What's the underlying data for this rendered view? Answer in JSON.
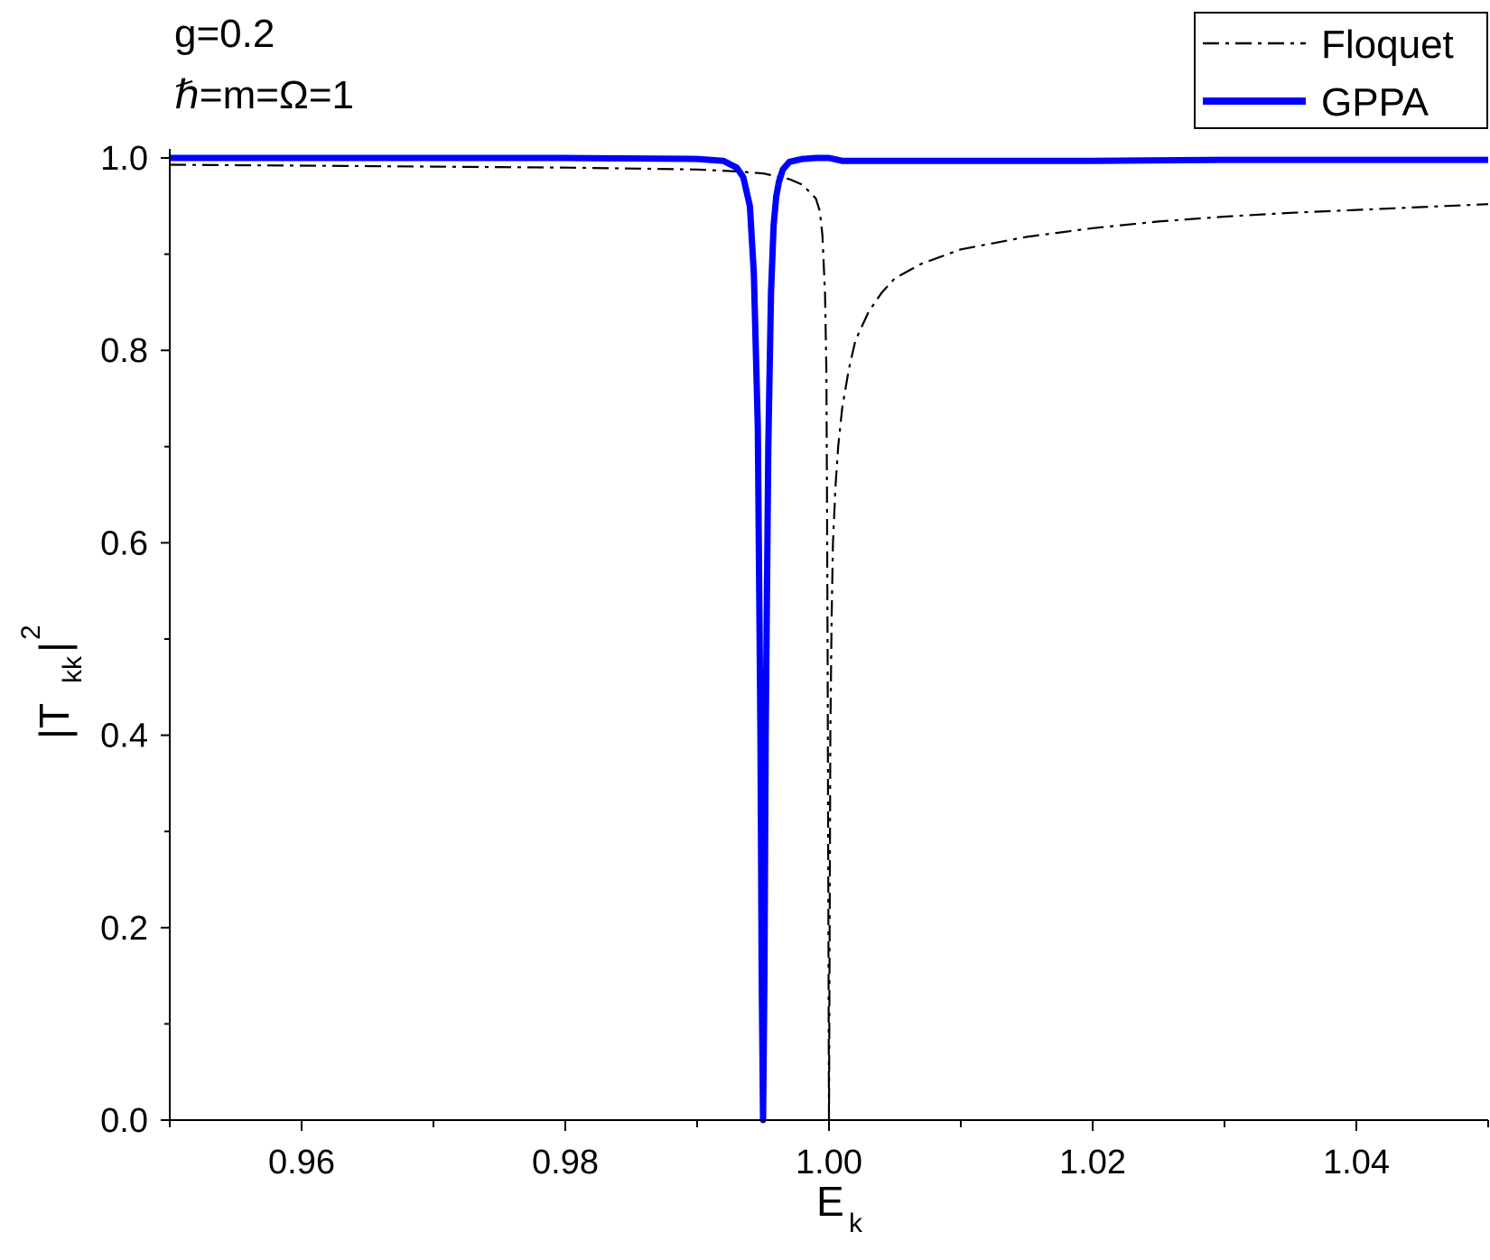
{
  "annotations": {
    "line1": "g=0.2",
    "line2": "ℏ=m=Ω=1"
  },
  "legend": {
    "floquet": "Floquet",
    "gppa": "GPPA"
  },
  "axes": {
    "xlabel_main": "E",
    "xlabel_sub": "k",
    "ylabel_main": "|T",
    "ylabel_sub": "kk",
    "ylabel_close": "|",
    "ylabel_sup": "2"
  },
  "chart_data": {
    "type": "line",
    "title": "",
    "xlabel": "E_k",
    "ylabel": "|T_kk|^2",
    "xlim": [
      0.95,
      1.05
    ],
    "ylim": [
      0.0,
      1.0
    ],
    "x_ticks": [
      "0.96",
      "0.98",
      "1.00",
      "1.02",
      "1.04"
    ],
    "x_tick_values": [
      0.96,
      0.98,
      1.0,
      1.02,
      1.04
    ],
    "y_ticks": [
      "0.0",
      "0.2",
      "0.4",
      "0.6",
      "0.8",
      "1.0"
    ],
    "y_tick_values": [
      0.0,
      0.2,
      0.4,
      0.6,
      0.8,
      1.0
    ],
    "legend_position": "top-right",
    "grid": false,
    "series": [
      {
        "name": "Floquet",
        "color": "#000000",
        "style": "dash-dot",
        "x": [
          0.95,
          0.96,
          0.97,
          0.98,
          0.985,
          0.99,
          0.993,
          0.995,
          0.997,
          0.998,
          0.999,
          0.9993,
          0.9995,
          0.9997,
          0.9998,
          0.99985,
          0.9999,
          0.99995,
          1.0,
          1.0001,
          1.0002,
          1.0003,
          1.0005,
          1.0007,
          1.001,
          1.0015,
          1.002,
          1.003,
          1.004,
          1.005,
          1.007,
          1.01,
          1.015,
          1.02,
          1.025,
          1.03,
          1.035,
          1.04,
          1.045,
          1.05
        ],
        "y": [
          0.993,
          0.992,
          0.991,
          0.99,
          0.989,
          0.988,
          0.986,
          0.984,
          0.978,
          0.972,
          0.958,
          0.945,
          0.92,
          0.86,
          0.78,
          0.65,
          0.48,
          0.22,
          0.0,
          0.4,
          0.52,
          0.6,
          0.66,
          0.7,
          0.74,
          0.78,
          0.81,
          0.84,
          0.86,
          0.875,
          0.89,
          0.905,
          0.918,
          0.927,
          0.934,
          0.939,
          0.943,
          0.946,
          0.949,
          0.952
        ]
      },
      {
        "name": "GPPA",
        "color": "#0000FF",
        "style": "solid",
        "x": [
          0.95,
          0.96,
          0.97,
          0.98,
          0.99,
          0.992,
          0.993,
          0.9935,
          0.994,
          0.9943,
          0.9946,
          0.9948,
          0.9949,
          0.995,
          0.9951,
          0.9952,
          0.9954,
          0.9956,
          0.9958,
          0.996,
          0.9962,
          0.9965,
          0.997,
          0.998,
          0.999,
          1.0,
          1.001,
          1.01,
          1.02,
          1.03,
          1.04,
          1.05
        ],
        "y": [
          1.0,
          1.0,
          1.0,
          1.0,
          0.999,
          0.997,
          0.99,
          0.98,
          0.95,
          0.88,
          0.72,
          0.4,
          0.15,
          0.0,
          0.15,
          0.4,
          0.7,
          0.86,
          0.93,
          0.96,
          0.975,
          0.988,
          0.996,
          0.999,
          1.0,
          1.0,
          0.997,
          0.997,
          0.997,
          0.998,
          0.998,
          0.998
        ]
      }
    ]
  }
}
